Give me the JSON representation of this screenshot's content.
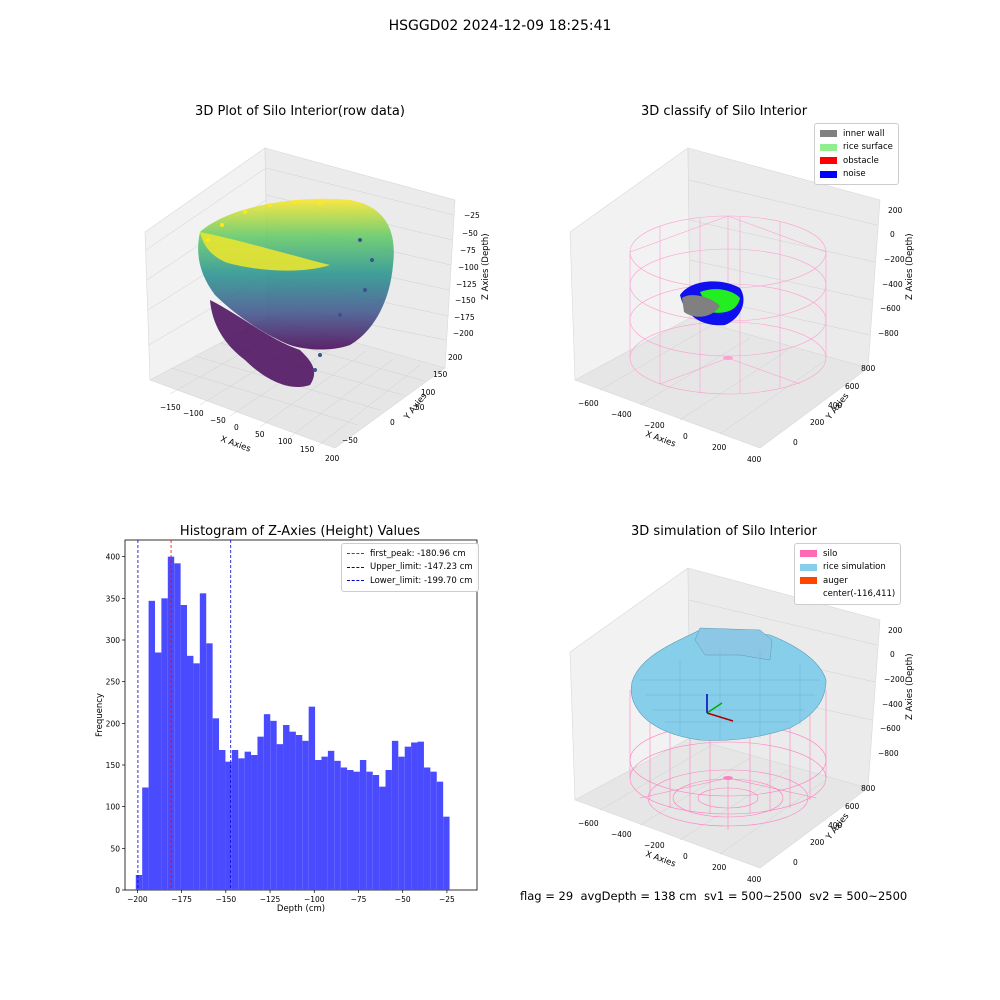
{
  "figure": {
    "title": "HSGGD02 2024-12-09 18:25:41",
    "status": {
      "flag": "flag = 29",
      "avg_depth": "avgDepth = 138 cm",
      "sv1": "sv1 = 500~2500",
      "sv2": "sv2 = 500~2500"
    }
  },
  "chart_data": [
    {
      "type": "scatter",
      "panel": "raw",
      "title": "3D Plot of Silo Interior(row data)",
      "xlabel": "X Axies",
      "ylabel": "Y Axies",
      "zlabel": "Z Axies (Depth)",
      "x_ticks": [
        "−150",
        "−100",
        "−50",
        "0",
        "50",
        "100",
        "150",
        "200"
      ],
      "y_ticks": [
        "−50",
        "0",
        "50",
        "100",
        "150",
        "200"
      ],
      "z_ticks": [
        "−25",
        "−50",
        "−75",
        "−100",
        "−125",
        "−150",
        "−175",
        "−200"
      ],
      "colormap": "viridis"
    },
    {
      "type": "scatter",
      "panel": "classify",
      "title": "3D classify of Silo Interior",
      "xlabel": "X Axies",
      "ylabel": "Y Axies",
      "zlabel": "Z Axies (Depth)",
      "x_ticks": [
        "−600",
        "−400",
        "−200",
        "0",
        "200",
        "400"
      ],
      "y_ticks": [
        "0",
        "200",
        "400",
        "600",
        "800"
      ],
      "z_ticks": [
        "200",
        "0",
        "−200",
        "−400",
        "−600",
        "−800"
      ],
      "legend": [
        {
          "label": "inner wall",
          "color": "#808080"
        },
        {
          "label": "rice surface",
          "color": "#90ee90"
        },
        {
          "label": "obstacle",
          "color": "#ff0000"
        },
        {
          "label": "noise",
          "color": "#0000ff"
        }
      ],
      "legend_position": "top-right"
    },
    {
      "type": "bar",
      "panel": "histogram",
      "title": "Histogram of Z-Axies (Height) Values",
      "xlabel": "Depth (cm)",
      "ylabel": "Frequency",
      "xlim": [
        -207,
        -8
      ],
      "ylim": [
        0,
        420
      ],
      "x_ticks": [
        -200,
        -175,
        -150,
        -125,
        -100,
        -75,
        -50,
        -25
      ],
      "x_tick_labels": [
        "−200",
        "−175",
        "−150",
        "−125",
        "−100",
        "−75",
        "−50",
        "−25"
      ],
      "y_ticks": [
        0,
        50,
        100,
        150,
        200,
        250,
        300,
        350,
        400
      ],
      "bin_start": -200.9,
      "bin_width": 3.62,
      "values": [
        18,
        123,
        347,
        285,
        350,
        400,
        392,
        342,
        281,
        272,
        356,
        296,
        206,
        168,
        154,
        168,
        158,
        166,
        162,
        184,
        211,
        203,
        175,
        198,
        190,
        186,
        179,
        220,
        156,
        160,
        167,
        155,
        147,
        144,
        142,
        156,
        142,
        138,
        124,
        144,
        179,
        160,
        172,
        177,
        178,
        147,
        142,
        130,
        88
      ],
      "bar_color": "#4a4aff",
      "vlines": [
        {
          "label": "first_peak: -180.96 cm",
          "x": -180.96,
          "color": "#ff0000"
        },
        {
          "label": "Upper_limit: -147.23 cm",
          "x": -147.23,
          "color": "#0000cc"
        },
        {
          "label": "Lower_limit: -199.70 cm",
          "x": -199.7,
          "color": "#0000cc"
        }
      ],
      "legend_position": "top-right"
    },
    {
      "type": "area",
      "panel": "simulation",
      "title": "3D simulation of Silo Interior",
      "xlabel": "X Axies",
      "ylabel": "Y Axies",
      "zlabel": "Z Axies (Depth)",
      "x_ticks": [
        "−600",
        "−400",
        "−200",
        "0",
        "200",
        "400"
      ],
      "y_ticks": [
        "0",
        "200",
        "400",
        "600",
        "800"
      ],
      "z_ticks": [
        "200",
        "0",
        "−200",
        "−400",
        "−600",
        "−800"
      ],
      "legend": [
        {
          "label": "silo",
          "color": "#ff69b4"
        },
        {
          "label": "rice simulation",
          "color": "#87ceeb"
        },
        {
          "label": "auger",
          "color": "#ff4500"
        },
        {
          "label": "center(-116,411)",
          "color": ""
        }
      ],
      "legend_position": "top-right"
    }
  ]
}
